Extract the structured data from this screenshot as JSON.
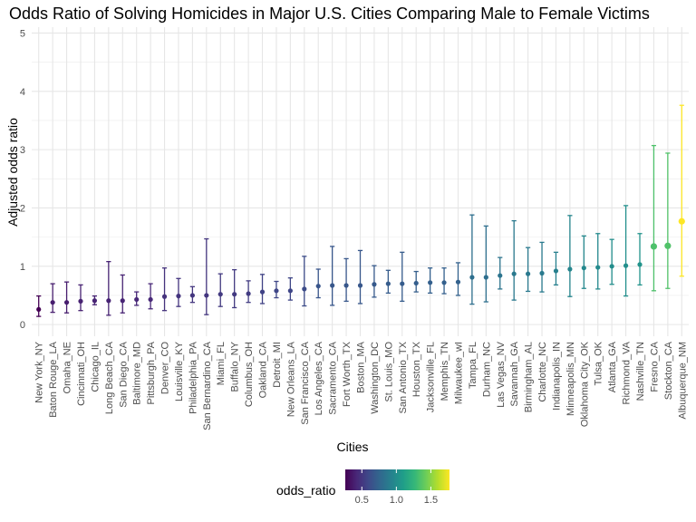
{
  "chart_data": {
    "type": "scatter",
    "title": "Odds Ratio of Solving Homicides in Major U.S. Cities Comparing Male to Female Victims",
    "xlabel": "Cities",
    "ylabel": "Adjusted odds ratio",
    "ylim": [
      -0.2,
      5.1
    ],
    "yticks": [
      0,
      1,
      2,
      3,
      4,
      5
    ],
    "grid": true,
    "legend": {
      "title": "odds_ratio",
      "placement": "bottom",
      "ticks": [
        0.5,
        1.0,
        1.5
      ],
      "tick_labels": [
        "0.5",
        "1.0",
        "1.5"
      ],
      "range": [
        0.26,
        1.77
      ]
    },
    "colors": [
      "#440154",
      "#482878",
      "#3e4989",
      "#31688e",
      "#26828e",
      "#1f9e89",
      "#35b779",
      "#6ece58",
      "#b5de2b",
      "#fde725"
    ],
    "categories": [
      "New York_NY",
      "Baton Rouge_LA",
      "Omaha_NE",
      "Cincinnati_OH",
      "Chicago_IL",
      "Long Beach_CA",
      "San Diego_CA",
      "Baltimore_MD",
      "Pittsburgh_PA",
      "Denver_CO",
      "Louisville_KY",
      "Philadelphia_PA",
      "San Bernardino_CA",
      "Miami_FL",
      "Buffalo_NY",
      "Columbus_OH",
      "Oakland_CA",
      "Detroit_MI",
      "New Orleans_LA",
      "San Francisco_CA",
      "Los Angeles_CA",
      "Sacramento_CA",
      "Fort Worth_TX",
      "Boston_MA",
      "Washington_DC",
      "St. Louis_MO",
      "San Antonio_TX",
      "Houston_TX",
      "Jacksonville_FL",
      "Memphis_TN",
      "Milwaukee_wI",
      "Tampa_FL",
      "Durham_NC",
      "Las Vegas_NV",
      "Savannah_GA",
      "Birmingham_AL",
      "Charlotte_NC",
      "Indianapolis_IN",
      "Minneapolis_MN",
      "Oklahoma City_OK",
      "Tulsa_OK",
      "Atlanta_GA",
      "Richmond_VA",
      "Nashville_TN",
      "Fresno_CA",
      "Stockton_CA",
      "Albuquerque_NM"
    ],
    "odds_ratio": [
      0.26,
      0.38,
      0.38,
      0.4,
      0.41,
      0.41,
      0.41,
      0.43,
      0.43,
      0.48,
      0.49,
      0.5,
      0.5,
      0.52,
      0.52,
      0.53,
      0.56,
      0.58,
      0.58,
      0.61,
      0.66,
      0.67,
      0.67,
      0.67,
      0.69,
      0.7,
      0.7,
      0.71,
      0.72,
      0.72,
      0.73,
      0.81,
      0.81,
      0.84,
      0.87,
      0.87,
      0.88,
      0.92,
      0.95,
      0.97,
      0.98,
      1.0,
      1.01,
      1.03,
      1.34,
      1.35,
      1.77
    ],
    "ci_low": [
      0.14,
      0.21,
      0.2,
      0.24,
      0.34,
      0.16,
      0.2,
      0.33,
      0.27,
      0.24,
      0.31,
      0.38,
      0.17,
      0.31,
      0.29,
      0.38,
      0.36,
      0.46,
      0.42,
      0.32,
      0.46,
      0.33,
      0.4,
      0.36,
      0.47,
      0.54,
      0.4,
      0.56,
      0.54,
      0.53,
      0.5,
      0.35,
      0.39,
      0.61,
      0.42,
      0.57,
      0.56,
      0.68,
      0.48,
      0.62,
      0.61,
      0.69,
      0.49,
      0.68,
      0.58,
      0.62,
      0.83
    ],
    "ci_high": [
      0.49,
      0.7,
      0.73,
      0.68,
      0.49,
      1.08,
      0.85,
      0.56,
      0.7,
      0.97,
      0.79,
      0.65,
      1.47,
      0.87,
      0.94,
      0.75,
      0.86,
      0.74,
      0.8,
      1.17,
      0.95,
      1.34,
      1.13,
      1.27,
      1.01,
      0.93,
      1.24,
      0.91,
      0.97,
      0.97,
      1.06,
      1.88,
      1.69,
      1.15,
      1.78,
      1.32,
      1.41,
      1.24,
      1.87,
      1.52,
      1.56,
      1.46,
      2.04,
      1.56,
      3.07,
      2.94,
      3.76
    ]
  }
}
